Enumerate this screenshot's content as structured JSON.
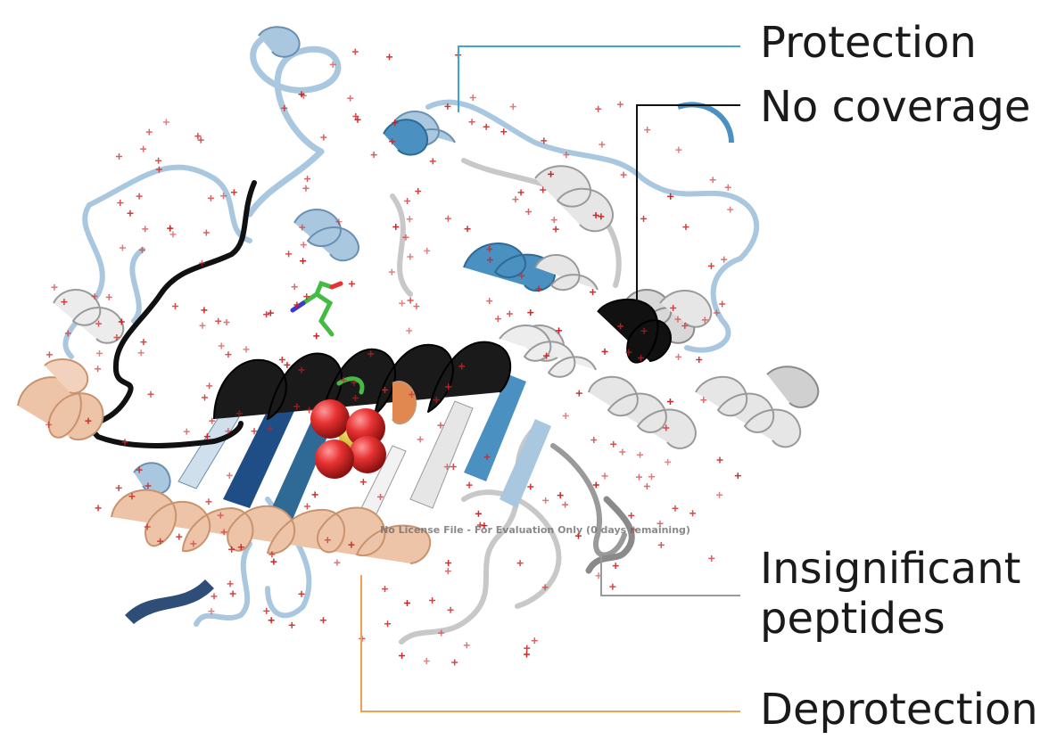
{
  "labels": {
    "protection": "Protection",
    "no_coverage": "No coverage",
    "insignificant_line1": "Insignificant",
    "insignificant_line2": "peptides",
    "deprotection": "Deprotection"
  },
  "watermark": "No License File - For Evaluation Only (0 days remaining)",
  "colors": {
    "protection": "#4a90c0",
    "protection_light": "#a9c8df",
    "protection_dark": "#1f4e86",
    "no_coverage": "#111111",
    "insignificant": "#9a9a9a",
    "insignificant_light": "#e6e6e6",
    "deprotection": "#f0a050",
    "deprotection_fill": "#edc4a8",
    "water": "#cc2222",
    "sulfate_o": "#e83232",
    "sulfate_s": "#d9c21a",
    "ligand": "#44bb44"
  },
  "icons": {
    "water": "plus-cross",
    "sulfate": "spheres"
  }
}
